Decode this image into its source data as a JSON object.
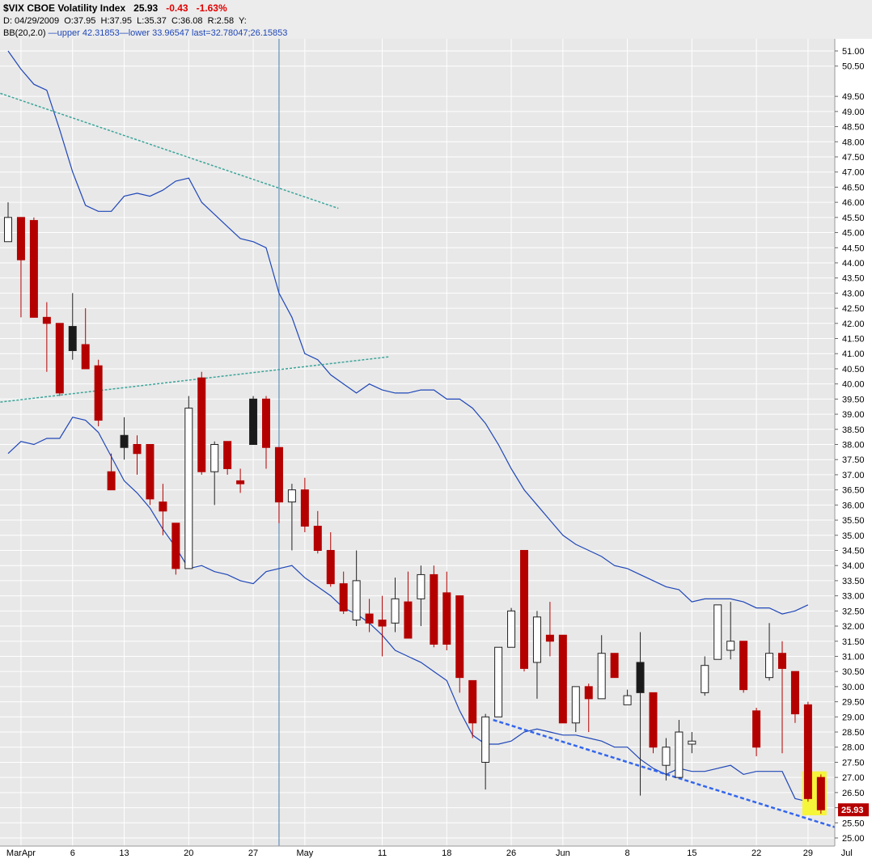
{
  "header": {
    "symbol_title": "$VIX CBOE Volatility Index",
    "last": "25.93",
    "change": "-0.43",
    "change_pct": "-1.63%",
    "ohlc_line": {
      "date": "D: 04/29/2009",
      "open": "O:37.95",
      "high": "H:37.95",
      "low": "L:35.37",
      "close": "C:36.08",
      "range": "R:2.58",
      "y": "Y:"
    },
    "bb_line": {
      "label": "BB(20,2.0)",
      "upper": "upper 42.31853",
      "lower": "lower 33.96547",
      "last": "last=32.78047;26.15853"
    }
  },
  "colors": {
    "down_candle": "#b50000",
    "up_candle": "#ffffff",
    "black_candle": "#1a1a1a",
    "bollinger": "#1f47b8",
    "trend_teal": "#3aa59a",
    "trend_blue": "#3366ee",
    "highlight": "#f5f53a",
    "background": "#e8e8e8",
    "grid": "#ffffff"
  },
  "chart_data": {
    "type": "candlestick",
    "title": "$VIX CBOE Volatility Index",
    "ylim": [
      25.0,
      51.0
    ],
    "y_ticks": [
      "25.00",
      "25.50",
      "26.00",
      "26.50",
      "27.00",
      "27.50",
      "28.00",
      "28.50",
      "29.00",
      "29.50",
      "30.00",
      "30.50",
      "31.00",
      "31.50",
      "32.00",
      "32.50",
      "33.00",
      "33.50",
      "34.00",
      "34.50",
      "35.00",
      "35.50",
      "36.00",
      "36.50",
      "37.00",
      "37.50",
      "38.00",
      "38.50",
      "39.00",
      "39.50",
      "40.00",
      "40.50",
      "41.00",
      "41.50",
      "42.00",
      "42.50",
      "43.00",
      "43.50",
      "44.00",
      "44.50",
      "45.00",
      "45.50",
      "46.00",
      "46.50",
      "47.00",
      "47.50",
      "48.00",
      "48.50",
      "49.00",
      "49.50",
      "50.50",
      "51.00"
    ],
    "x_ticks": [
      {
        "label": "MarApr",
        "bar": 1
      },
      {
        "label": "6",
        "bar": 5
      },
      {
        "label": "13",
        "bar": 9
      },
      {
        "label": "20",
        "bar": 14
      },
      {
        "label": "27",
        "bar": 19
      },
      {
        "label": "May",
        "bar": 23
      },
      {
        "label": "11",
        "bar": 29
      },
      {
        "label": "18",
        "bar": 34
      },
      {
        "label": "26",
        "bar": 39
      },
      {
        "label": "Jun",
        "bar": 43
      },
      {
        "label": "8",
        "bar": 48
      },
      {
        "label": "15",
        "bar": 53
      },
      {
        "label": "22",
        "bar": 58
      },
      {
        "label": "29",
        "bar": 62
      },
      {
        "label": "Jul",
        "bar": 65
      }
    ],
    "last_price_label": "25.93",
    "candles": [
      {
        "o": 44.7,
        "h": 46.0,
        "l": 44.7,
        "c": 45.5,
        "k": "up"
      },
      {
        "o": 45.5,
        "h": 45.5,
        "l": 42.2,
        "c": 44.1,
        "k": "down"
      },
      {
        "o": 45.4,
        "h": 45.5,
        "l": 42.2,
        "c": 42.2,
        "k": "down"
      },
      {
        "o": 42.2,
        "h": 42.7,
        "l": 40.4,
        "c": 42.0,
        "k": "down"
      },
      {
        "o": 42.0,
        "h": 42.0,
        "l": 39.6,
        "c": 39.7,
        "k": "down"
      },
      {
        "o": 41.9,
        "h": 43.0,
        "l": 40.8,
        "c": 41.1,
        "k": "black"
      },
      {
        "o": 41.3,
        "h": 42.5,
        "l": 40.5,
        "c": 40.5,
        "k": "down"
      },
      {
        "o": 40.6,
        "h": 40.8,
        "l": 38.6,
        "c": 38.8,
        "k": "down"
      },
      {
        "o": 37.1,
        "h": 37.7,
        "l": 36.5,
        "c": 36.5,
        "k": "down"
      },
      {
        "o": 37.9,
        "h": 38.9,
        "l": 37.5,
        "c": 38.3,
        "k": "black"
      },
      {
        "o": 38.0,
        "h": 38.3,
        "l": 37.0,
        "c": 37.7,
        "k": "down"
      },
      {
        "o": 38.0,
        "h": 38.0,
        "l": 36.0,
        "c": 36.2,
        "k": "down"
      },
      {
        "o": 36.1,
        "h": 36.7,
        "l": 35.0,
        "c": 35.8,
        "k": "down"
      },
      {
        "o": 35.4,
        "h": 35.4,
        "l": 33.7,
        "c": 33.9,
        "k": "down"
      },
      {
        "o": 33.9,
        "h": 39.6,
        "l": 33.9,
        "c": 39.2,
        "k": "up"
      },
      {
        "o": 40.2,
        "h": 40.4,
        "l": 37.0,
        "c": 37.1,
        "k": "down"
      },
      {
        "o": 37.1,
        "h": 38.1,
        "l": 36.0,
        "c": 38.0,
        "k": "up"
      },
      {
        "o": 38.1,
        "h": 38.1,
        "l": 37.0,
        "c": 37.2,
        "k": "down"
      },
      {
        "o": 36.8,
        "h": 37.2,
        "l": 36.4,
        "c": 36.7,
        "k": "down"
      },
      {
        "o": 38.0,
        "h": 39.6,
        "l": 38.0,
        "c": 39.5,
        "k": "black"
      },
      {
        "o": 39.5,
        "h": 39.6,
        "l": 37.2,
        "c": 37.9,
        "k": "down"
      },
      {
        "o": 37.9,
        "h": 37.9,
        "l": 35.4,
        "c": 36.1,
        "k": "down"
      },
      {
        "o": 36.1,
        "h": 36.7,
        "l": 34.5,
        "c": 36.5,
        "k": "up"
      },
      {
        "o": 36.5,
        "h": 36.9,
        "l": 35.1,
        "c": 35.3,
        "k": "down"
      },
      {
        "o": 35.3,
        "h": 35.8,
        "l": 34.4,
        "c": 34.5,
        "k": "down"
      },
      {
        "o": 34.5,
        "h": 35.1,
        "l": 33.3,
        "c": 33.4,
        "k": "down"
      },
      {
        "o": 33.4,
        "h": 33.8,
        "l": 32.4,
        "c": 32.5,
        "k": "down"
      },
      {
        "o": 32.2,
        "h": 34.5,
        "l": 32.0,
        "c": 33.5,
        "k": "up"
      },
      {
        "o": 32.4,
        "h": 32.9,
        "l": 31.8,
        "c": 32.1,
        "k": "down"
      },
      {
        "o": 32.2,
        "h": 33.0,
        "l": 31.0,
        "c": 32.0,
        "k": "down"
      },
      {
        "o": 32.1,
        "h": 33.6,
        "l": 31.8,
        "c": 32.9,
        "k": "up"
      },
      {
        "o": 32.8,
        "h": 33.8,
        "l": 31.6,
        "c": 31.6,
        "k": "down"
      },
      {
        "o": 32.9,
        "h": 34.0,
        "l": 32.0,
        "c": 33.7,
        "k": "up"
      },
      {
        "o": 33.7,
        "h": 34.0,
        "l": 31.3,
        "c": 31.4,
        "k": "down"
      },
      {
        "o": 33.1,
        "h": 33.8,
        "l": 31.2,
        "c": 31.4,
        "k": "down"
      },
      {
        "o": 33.0,
        "h": 33.0,
        "l": 29.8,
        "c": 30.3,
        "k": "down"
      },
      {
        "o": 30.2,
        "h": 30.2,
        "l": 28.3,
        "c": 28.8,
        "k": "down"
      },
      {
        "o": 27.5,
        "h": 29.1,
        "l": 26.6,
        "c": 29.0,
        "k": "up"
      },
      {
        "o": 29.0,
        "h": 31.3,
        "l": 29.0,
        "c": 31.3,
        "k": "up"
      },
      {
        "o": 31.3,
        "h": 32.6,
        "l": 31.3,
        "c": 32.5,
        "k": "up"
      },
      {
        "o": 34.5,
        "h": 34.5,
        "l": 30.5,
        "c": 30.6,
        "k": "down"
      },
      {
        "o": 30.8,
        "h": 32.5,
        "l": 29.6,
        "c": 32.3,
        "k": "up"
      },
      {
        "o": 31.7,
        "h": 32.8,
        "l": 31.0,
        "c": 31.5,
        "k": "down"
      },
      {
        "o": 31.7,
        "h": 31.7,
        "l": 28.8,
        "c": 28.8,
        "k": "down"
      },
      {
        "o": 28.8,
        "h": 30.0,
        "l": 28.5,
        "c": 30.0,
        "k": "up"
      },
      {
        "o": 30.0,
        "h": 30.1,
        "l": 28.5,
        "c": 29.6,
        "k": "down"
      },
      {
        "o": 29.6,
        "h": 31.7,
        "l": 29.6,
        "c": 31.1,
        "k": "up"
      },
      {
        "o": 31.1,
        "h": 31.1,
        "l": 30.3,
        "c": 30.3,
        "k": "down"
      },
      {
        "o": 29.4,
        "h": 29.9,
        "l": 29.4,
        "c": 29.7,
        "k": "up"
      },
      {
        "o": 29.8,
        "h": 31.8,
        "l": 26.4,
        "c": 30.8,
        "k": "black"
      },
      {
        "o": 29.8,
        "h": 29.8,
        "l": 27.8,
        "c": 28.0,
        "k": "down"
      },
      {
        "o": 27.4,
        "h": 28.3,
        "l": 26.9,
        "c": 28.0,
        "k": "up"
      },
      {
        "o": 27.0,
        "h": 28.9,
        "l": 27.0,
        "c": 28.5,
        "k": "up"
      },
      {
        "o": 28.1,
        "h": 28.5,
        "l": 27.8,
        "c": 28.2,
        "k": "up"
      },
      {
        "o": 29.8,
        "h": 31.0,
        "l": 29.7,
        "c": 30.7,
        "k": "up"
      },
      {
        "o": 30.9,
        "h": 32.7,
        "l": 30.9,
        "c": 32.7,
        "k": "up"
      },
      {
        "o": 31.2,
        "h": 32.8,
        "l": 30.9,
        "c": 31.5,
        "k": "up"
      },
      {
        "o": 31.5,
        "h": 31.5,
        "l": 29.8,
        "c": 29.9,
        "k": "down"
      },
      {
        "o": 29.2,
        "h": 29.3,
        "l": 27.7,
        "c": 28.0,
        "k": "down"
      },
      {
        "o": 30.3,
        "h": 32.1,
        "l": 30.2,
        "c": 31.1,
        "k": "up"
      },
      {
        "o": 31.1,
        "h": 31.5,
        "l": 27.8,
        "c": 30.6,
        "k": "down"
      },
      {
        "o": 30.5,
        "h": 30.5,
        "l": 28.8,
        "c": 29.1,
        "k": "down"
      },
      {
        "o": 29.4,
        "h": 29.5,
        "l": 26.2,
        "c": 26.3,
        "k": "down"
      },
      {
        "o": 27.0,
        "h": 27.1,
        "l": 25.8,
        "c": 25.93,
        "k": "down"
      }
    ],
    "bollinger_upper": [
      51.0,
      50.4,
      49.9,
      49.7,
      48.4,
      47.0,
      45.9,
      45.7,
      45.7,
      46.2,
      46.3,
      46.2,
      46.4,
      46.7,
      46.8,
      46.0,
      45.6,
      45.2,
      44.8,
      44.7,
      44.5,
      43.0,
      42.2,
      41.0,
      40.8,
      40.3,
      40.0,
      39.7,
      40.0,
      39.8,
      39.7,
      39.7,
      39.8,
      39.8,
      39.5,
      39.5,
      39.2,
      38.7,
      38.0,
      37.2,
      36.5,
      36.0,
      35.5,
      35.0,
      34.7,
      34.5,
      34.3,
      34.0,
      33.9,
      33.7,
      33.5,
      33.3,
      33.2,
      32.8,
      32.9,
      32.9,
      32.9,
      32.8,
      32.6,
      32.6,
      32.4,
      32.5,
      32.7
    ]
  },
  "annotations": {
    "bollinger_lower": [
      37.7,
      38.1,
      38.0,
      38.2,
      38.2,
      38.9,
      38.8,
      38.4,
      37.6,
      36.8,
      36.4,
      35.9,
      35.2,
      34.6,
      33.9,
      34.0,
      33.8,
      33.7,
      33.5,
      33.4,
      33.8,
      33.9,
      34.0,
      33.6,
      33.3,
      33.0,
      32.6,
      32.4,
      32.1,
      31.7,
      31.2,
      31.0,
      30.8,
      30.5,
      30.2,
      29.2,
      28.4,
      28.1,
      28.1,
      28.2,
      28.5,
      28.6,
      28.5,
      28.4,
      28.4,
      28.3,
      28.2,
      28.0,
      28.0,
      27.6,
      27.3,
      27.1,
      27.3,
      27.2,
      27.2,
      27.3,
      27.4,
      27.1,
      27.2,
      27.2,
      27.2,
      26.3,
      26.2
    ],
    "vertical_marker_bar": 21,
    "highlight_bars": [
      62,
      63
    ]
  }
}
